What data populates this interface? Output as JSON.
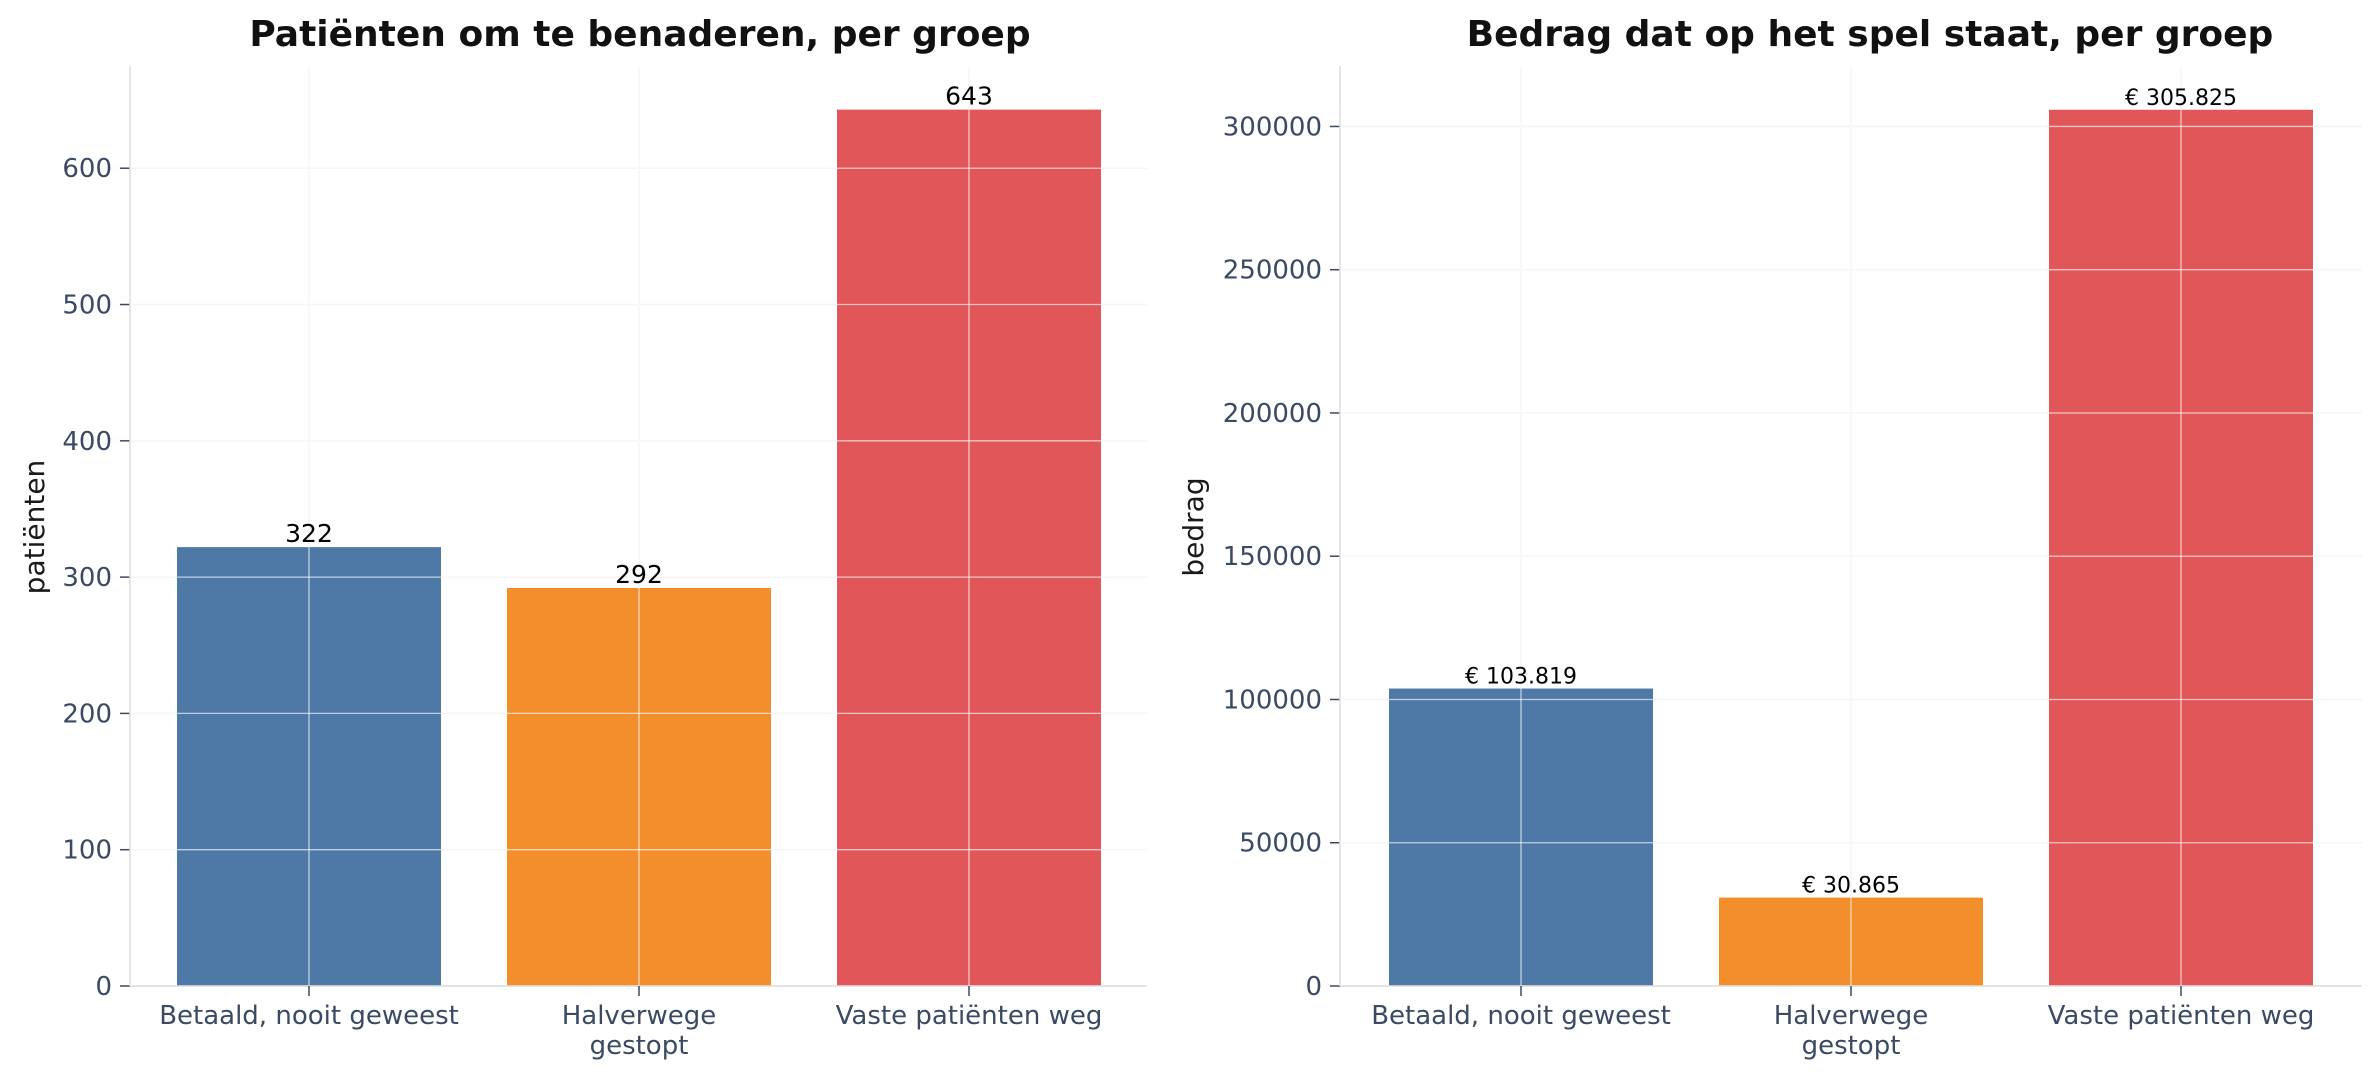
{
  "chart_data": [
    {
      "type": "bar",
      "title": "Patiënten om te benaderen, per groep",
      "xlabel": "",
      "ylabel": "patiënten",
      "categories": [
        "Betaald, nooit geweest",
        "Halverwege\ngestopt",
        "Vaste patiënten weg"
      ],
      "values": [
        322,
        292,
        643
      ],
      "value_labels": [
        "322",
        "292",
        "643"
      ],
      "colors": [
        "#4e79a7",
        "#f28e2b",
        "#e15759"
      ],
      "ylim": [
        0,
        675
      ],
      "yticks": [
        0,
        100,
        200,
        300,
        400,
        500,
        600
      ],
      "ytick_labels": [
        "0",
        "100",
        "200",
        "300",
        "400",
        "500",
        "600"
      ],
      "grid": true,
      "legend": "none"
    },
    {
      "type": "bar",
      "title": "Bedrag dat op het spel staat, per groep",
      "xlabel": "",
      "ylabel": "bedrag",
      "categories": [
        "Betaald, nooit geweest",
        "Halverwege\ngestopt",
        "Vaste patiënten weg"
      ],
      "values": [
        103819,
        30865,
        305825
      ],
      "value_labels": [
        "€ 103.819",
        "€ 30.865",
        "€ 305.825"
      ],
      "colors": [
        "#4e79a7",
        "#f28e2b",
        "#e15759"
      ],
      "ylim": [
        0,
        321100
      ],
      "yticks": [
        0,
        50000,
        100000,
        150000,
        200000,
        250000,
        300000
      ],
      "ytick_labels": [
        "0",
        "50000",
        "100000",
        "150000",
        "200000",
        "250000",
        "300000"
      ],
      "grid": true,
      "legend": "none"
    }
  ]
}
